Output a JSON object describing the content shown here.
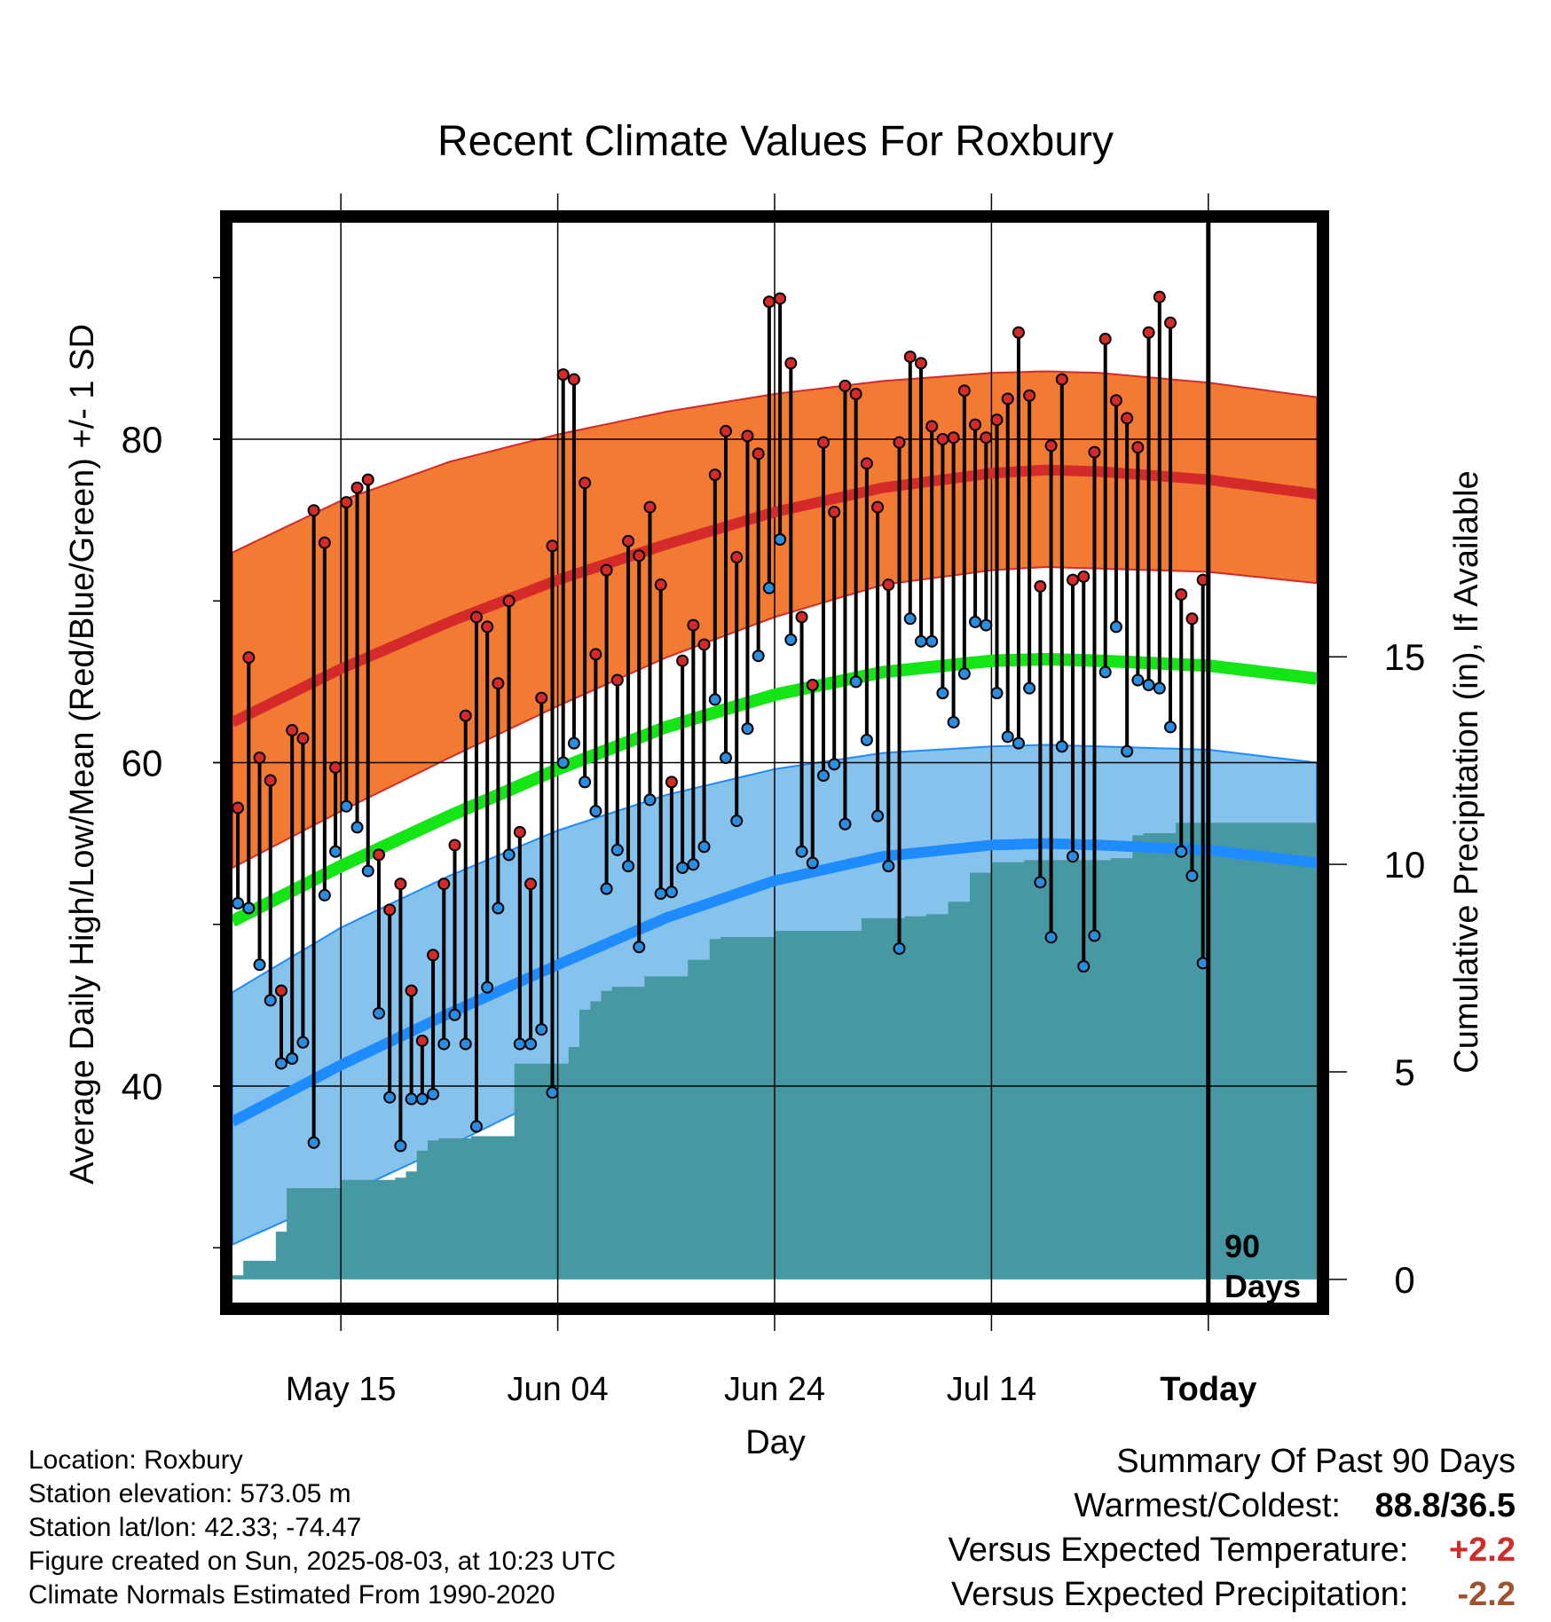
{
  "chart_data": {
    "type": "line",
    "title": "Recent Climate Values For Roxbury",
    "xlabel": "Day",
    "ylabel": "Average Daily High/Low/Mean (Red/Blue/Green) +/- 1 SD",
    "y2label": "Cumulative Precipitation (in), If Available",
    "x_ticks": [
      "May 15",
      "Jun 04",
      "Jun 24",
      "Jul 14",
      "Today"
    ],
    "y_ticks": [
      "40",
      "60",
      "80"
    ],
    "y2_ticks": [
      "0",
      "5",
      "10",
      "15"
    ],
    "ylim": [
      26.5,
      93.5
    ],
    "y2lim": [
      -0.6,
      25.5
    ],
    "x_range_days": [
      0,
      100
    ],
    "today_index": 90,
    "today_label_line1": "90",
    "today_label_line2": "Days",
    "grid": true,
    "colors": {
      "normal_high": "#d42a2a",
      "high_band": "#f37a32",
      "normal_low": "#1e8cff",
      "low_band": "#85c2ec",
      "normal_mean": "#14e514",
      "precip": "#4699a3",
      "high_point": "#d42a2a",
      "low_point": "#2a8ee0",
      "summary_warm": "#d42a2a",
      "summary_precip": "#a0522d"
    },
    "normals": {
      "x": [
        0,
        10,
        20,
        30,
        40,
        50,
        60,
        70,
        75,
        80,
        90,
        100
      ],
      "high": [
        62.5,
        65.8,
        68.7,
        71.3,
        73.5,
        75.5,
        77.0,
        77.9,
        78.1,
        78.0,
        77.5,
        76.6
      ],
      "high_upper": [
        73.0,
        76.2,
        78.6,
        80.3,
        81.7,
        82.8,
        83.6,
        84.1,
        84.2,
        84.1,
        83.5,
        82.6
      ],
      "high_lower": [
        53.5,
        57.0,
        60.3,
        63.5,
        66.5,
        69.0,
        71.0,
        71.9,
        72.1,
        72.0,
        71.8,
        71.1
      ],
      "low": [
        37.8,
        41.3,
        44.5,
        47.5,
        50.4,
        52.7,
        54.2,
        54.9,
        55.0,
        54.9,
        54.6,
        53.8
      ],
      "low_upper": [
        45.8,
        49.8,
        53.0,
        55.8,
        58.0,
        59.6,
        60.6,
        61.0,
        61.1,
        61.0,
        60.8,
        60.0
      ],
      "low_lower": [
        30.2,
        33.2,
        36.3,
        39.6,
        42.6,
        45.6,
        47.8,
        49.0,
        49.3,
        49.4,
        49.3,
        48.6
      ],
      "mean": [
        50.2,
        53.6,
        56.7,
        59.6,
        62.2,
        64.2,
        65.6,
        66.3,
        66.4,
        66.3,
        66.0,
        65.2
      ]
    },
    "series": [
      {
        "name": "High",
        "values": [
          57.2,
          66.5,
          60.3,
          58.9,
          45.9,
          62.0,
          61.5,
          75.6,
          73.6,
          59.7,
          76.1,
          77.0,
          77.5,
          54.3,
          50.9,
          52.5,
          45.9,
          42.8,
          48.1,
          52.5,
          54.9,
          62.9,
          69.0,
          68.4,
          64.9,
          70.0,
          55.7,
          52.5,
          64.0,
          73.4,
          84.0,
          83.7,
          77.3,
          66.7,
          71.9,
          65.1,
          73.7,
          72.8,
          75.8,
          71.0,
          58.8,
          66.3,
          68.5,
          67.3,
          77.8,
          80.5,
          72.7,
          80.2,
          79.1,
          88.5,
          88.7,
          84.7,
          69.0,
          64.8,
          79.8,
          75.5,
          83.3,
          82.8,
          78.5,
          75.8,
          71.0,
          79.8,
          85.1,
          84.7,
          80.8,
          80.0,
          80.1,
          83.0,
          80.9,
          80.1,
          81.2,
          82.5,
          86.6,
          82.7,
          70.9,
          79.6,
          83.7,
          71.3,
          71.5,
          79.2,
          86.2,
          82.4,
          81.3,
          79.5,
          86.6,
          88.8,
          87.2,
          70.4,
          68.9,
          71.3
        ],
        "lows": [
          51.3,
          51.0,
          47.5,
          45.3,
          41.4,
          41.7,
          42.7,
          36.5,
          51.8,
          54.5,
          57.3,
          56.0,
          53.3,
          44.5,
          39.3,
          36.3,
          39.2,
          39.2,
          39.5,
          42.6,
          44.4,
          42.6,
          37.5,
          46.1,
          51.0,
          54.3,
          42.6,
          42.6,
          43.5,
          39.6,
          60.0,
          61.2,
          58.8,
          57.0,
          52.2,
          54.6,
          53.6,
          48.6,
          57.7,
          51.9,
          52.0,
          53.5,
          53.7,
          54.8,
          63.9,
          60.3,
          56.4,
          62.1,
          66.6,
          70.8,
          73.8,
          67.6,
          54.5,
          53.8,
          59.2,
          59.9,
          56.2,
          65.0,
          61.4,
          56.7,
          53.6,
          48.5,
          68.9,
          67.5,
          67.5,
          64.3,
          62.5,
          65.5,
          68.7,
          68.5,
          64.3,
          61.6,
          61.2,
          64.6,
          52.6,
          49.2,
          61.0,
          54.2,
          47.4,
          49.3,
          65.6,
          68.4,
          60.7,
          65.1,
          64.8,
          64.6,
          62.2,
          54.5,
          53.0,
          47.6
        ]
      },
      {
        "name": "Cumulative Precipitation",
        "x": [
          0,
          1,
          3,
          4,
          5,
          9,
          10,
          11,
          15,
          16,
          17,
          18,
          19,
          22,
          25,
          26,
          29,
          30,
          31,
          32,
          33,
          34,
          35,
          36,
          37,
          38,
          39,
          42,
          44,
          45,
          46,
          50,
          51,
          55,
          58,
          62,
          64,
          66,
          68,
          70,
          71,
          72,
          73,
          74,
          77,
          81,
          83,
          84,
          86,
          87,
          89,
          90,
          100
        ],
        "values": [
          0.1,
          0.45,
          0.45,
          1.15,
          2.2,
          2.2,
          2.4,
          2.4,
          2.45,
          2.6,
          3.1,
          3.35,
          3.4,
          3.45,
          3.45,
          5.2,
          5.2,
          5.2,
          5.6,
          6.5,
          6.7,
          6.95,
          7.05,
          7.05,
          7.05,
          7.3,
          7.3,
          7.7,
          8.2,
          8.25,
          8.25,
          8.4,
          8.4,
          8.4,
          8.7,
          8.75,
          8.8,
          9.1,
          9.8,
          10.05,
          10.05,
          10.05,
          10.1,
          10.1,
          10.1,
          10.15,
          10.7,
          10.75,
          10.75,
          11.0,
          11.0,
          11.0,
          11.0
        ]
      }
    ]
  },
  "footer": {
    "location": "Location: Roxbury",
    "elevation": "Station elevation: 573.05 m",
    "latlon": "Station lat/lon: 42.33; -74.47",
    "created": "Figure created on Sun, 2025-08-03, at 10:23 UTC",
    "normals": "Climate Normals Estimated From 1990-2020"
  },
  "summary": {
    "title": "Summary Of Past 90 Days",
    "warm_cold_label": "Warmest/Coldest:",
    "warm_cold_value": "88.8/36.5",
    "temp_label": "Versus Expected Temperature:",
    "temp_value": "+2.2",
    "precip_label": "Versus Expected Precipitation:",
    "precip_value": "-2.2"
  }
}
